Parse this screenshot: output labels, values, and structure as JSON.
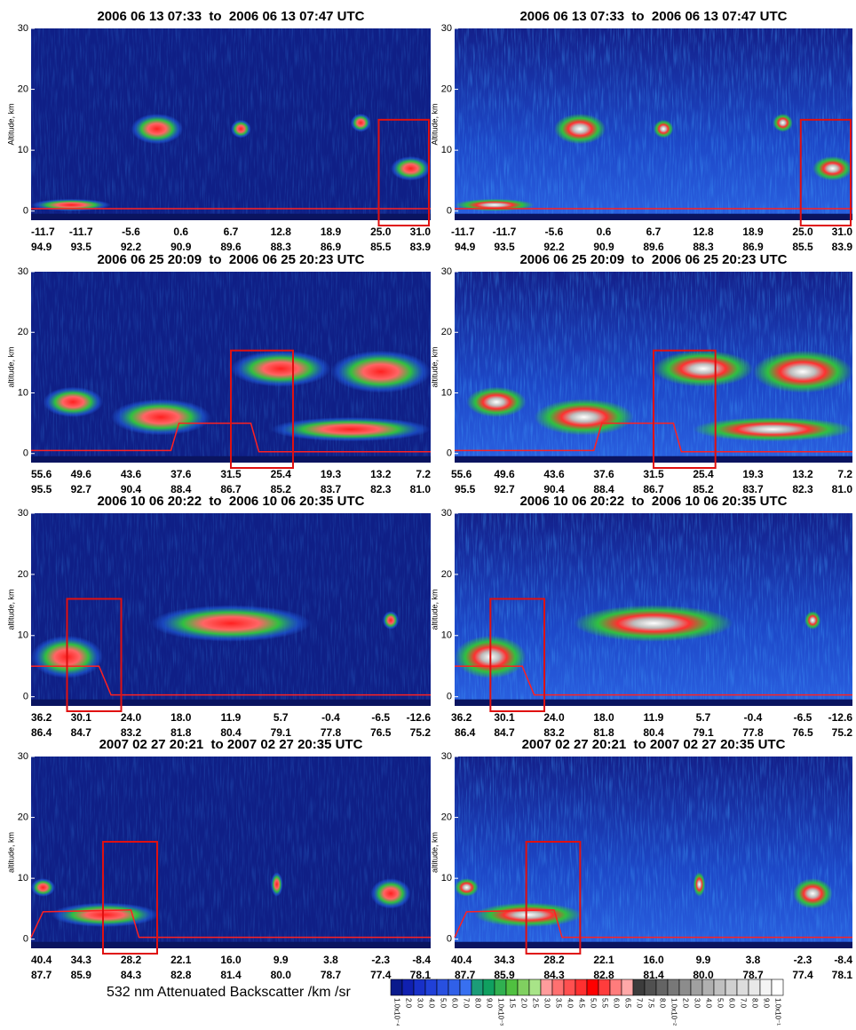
{
  "chart_data": [
    {
      "type": "curtain",
      "title": "2006 06 13 07:33  to  2006 06 13 07:47 UTC",
      "ylabel": "Altitude, km",
      "ylim": [
        -1.5,
        30
      ],
      "yticks": [
        0,
        10,
        20,
        30
      ],
      "x_labels": [
        "-11.7",
        "-11.7",
        "-5.6",
        "0.6",
        "6.7",
        "12.8",
        "18.9",
        "25.0",
        "31.0"
      ],
      "x2_labels": [
        "94.9",
        "93.5",
        "92.2",
        "90.9",
        "89.6",
        "88.3",
        "86.9",
        "85.5",
        "83.9"
      ]
    },
    {
      "type": "curtain",
      "title": "2006 06 13 07:33  to  2006 06 13 07:47 UTC",
      "ylabel": "Altitude, km",
      "ylim": [
        -1.5,
        30
      ],
      "yticks": [
        0,
        10,
        20,
        30
      ],
      "x_labels": [
        "-11.7",
        "-11.7",
        "-5.6",
        "0.6",
        "6.7",
        "12.8",
        "18.9",
        "25.0",
        "31.0"
      ],
      "x2_labels": [
        "94.9",
        "93.5",
        "92.2",
        "90.9",
        "89.6",
        "88.3",
        "86.9",
        "85.5",
        "83.9"
      ]
    },
    {
      "type": "curtain",
      "title": "2006 06 25 20:09  to  2006 06 25 20:23 UTC",
      "ylabel": "altitude, km",
      "ylim": [
        -1.5,
        30
      ],
      "yticks": [
        0,
        10,
        20,
        30
      ],
      "x_labels": [
        "55.6",
        "49.6",
        "43.6",
        "37.6",
        "31.5",
        "25.4",
        "19.3",
        "13.2",
        "7.2"
      ],
      "x2_labels": [
        "95.5",
        "92.7",
        "90.4",
        "88.4",
        "86.7",
        "85.2",
        "83.7",
        "82.3",
        "81.0"
      ]
    },
    {
      "type": "curtain",
      "title": "2006 06 25 20:09  to  2006 06 25 20:23 UTC",
      "ylabel": "altitude, km",
      "ylim": [
        -1.5,
        30
      ],
      "yticks": [
        0,
        10,
        20,
        30
      ],
      "x_labels": [
        "55.6",
        "49.6",
        "43.6",
        "37.6",
        "31.5",
        "25.4",
        "19.3",
        "13.2",
        "7.2"
      ],
      "x2_labels": [
        "95.5",
        "92.7",
        "90.4",
        "88.4",
        "86.7",
        "85.2",
        "83.7",
        "82.3",
        "81.0"
      ]
    },
    {
      "type": "curtain",
      "title": "2006 10 06 20:22  to  2006 10 06 20:35 UTC",
      "ylabel": "altitude, km",
      "ylim": [
        -1.5,
        30
      ],
      "yticks": [
        0,
        10,
        20,
        30
      ],
      "x_labels": [
        "36.2",
        "30.1",
        "24.0",
        "18.0",
        "11.9",
        "5.7",
        "-0.4",
        "-6.5",
        "-12.6"
      ],
      "x2_labels": [
        "86.4",
        "84.7",
        "83.2",
        "81.8",
        "80.4",
        "79.1",
        "77.8",
        "76.5",
        "75.2"
      ]
    },
    {
      "type": "curtain",
      "title": "2006 10 06 20:22  to  2006 10 06 20:35 UTC",
      "ylabel": "altitude, km",
      "ylim": [
        -1.5,
        30
      ],
      "yticks": [
        0,
        10,
        20,
        30
      ],
      "x_labels": [
        "36.2",
        "30.1",
        "24.0",
        "18.0",
        "11.9",
        "5.7",
        "-0.4",
        "-6.5",
        "-12.6"
      ],
      "x2_labels": [
        "86.4",
        "84.7",
        "83.2",
        "81.8",
        "80.4",
        "79.1",
        "77.8",
        "76.5",
        "75.2"
      ]
    },
    {
      "type": "curtain",
      "title": "2007 02 27 20:21  to 2007 02 27 20:35 UTC",
      "ylabel": "altitude, km",
      "ylim": [
        -1.5,
        30
      ],
      "yticks": [
        0,
        10,
        20,
        30
      ],
      "x_labels": [
        "40.4",
        "34.3",
        "28.2",
        "22.1",
        "16.0",
        "9.9",
        "3.8",
        "-2.3",
        "-8.4"
      ],
      "x2_labels": [
        "87.7",
        "85.9",
        "84.3",
        "82.8",
        "81.4",
        "80.0",
        "78.7",
        "77.4",
        "78.1"
      ]
    },
    {
      "type": "curtain",
      "title": "2007 02 27 20:21  to 2007 02 27 20:35 UTC",
      "ylabel": "altitude, km",
      "ylim": [
        -1.5,
        30
      ],
      "yticks": [
        0,
        10,
        20,
        30
      ],
      "x_labels": [
        "40.4",
        "34.3",
        "28.2",
        "22.1",
        "16.0",
        "9.9",
        "3.8",
        "-2.3",
        "-8.4"
      ],
      "x2_labels": [
        "87.7",
        "85.9",
        "84.3",
        "82.8",
        "81.4",
        "80.0",
        "78.7",
        "77.4",
        "78.1"
      ]
    }
  ],
  "colorbar": {
    "title": "532 nm Attenuated Backscatter /km /sr",
    "labels": [
      "1.0x10⁻⁴",
      "2.0",
      "3.0",
      "4.0",
      "5.0",
      "6.0",
      "7.0",
      "8.0",
      "9.0",
      "1.0x10⁻³",
      "1.5",
      "2.0",
      "2.5",
      "3.0",
      "3.5",
      "4.0",
      "4.5",
      "5.0",
      "5.5",
      "6.0",
      "6.5",
      "7.0",
      "7.5",
      "8.0",
      "1.0x10⁻²",
      "2.0",
      "3.0",
      "4.0",
      "5.0",
      "6.0",
      "7.0",
      "8.0",
      "9.0",
      "1.0x10⁻¹"
    ],
    "colors": [
      "#0a1a8c",
      "#1020b0",
      "#1830c8",
      "#2040d8",
      "#2850e0",
      "#3060e8",
      "#3870f0",
      "#1c9c78",
      "#10a060",
      "#30b050",
      "#50c040",
      "#80d060",
      "#a8e488",
      "#ff9c9c",
      "#ff7070",
      "#ff5050",
      "#ff3030",
      "#ff0000",
      "#ff3c3c",
      "#ff7c7c",
      "#ffa8a8",
      "#3c3c3c",
      "#505050",
      "#646464",
      "#787878",
      "#8c8c8c",
      "#a0a0a0",
      "#b0b0b0",
      "#c0c0c0",
      "#d0d0d0",
      "#dcdcdc",
      "#e8e8e8",
      "#f4f4f4",
      "#ffffff"
    ]
  }
}
